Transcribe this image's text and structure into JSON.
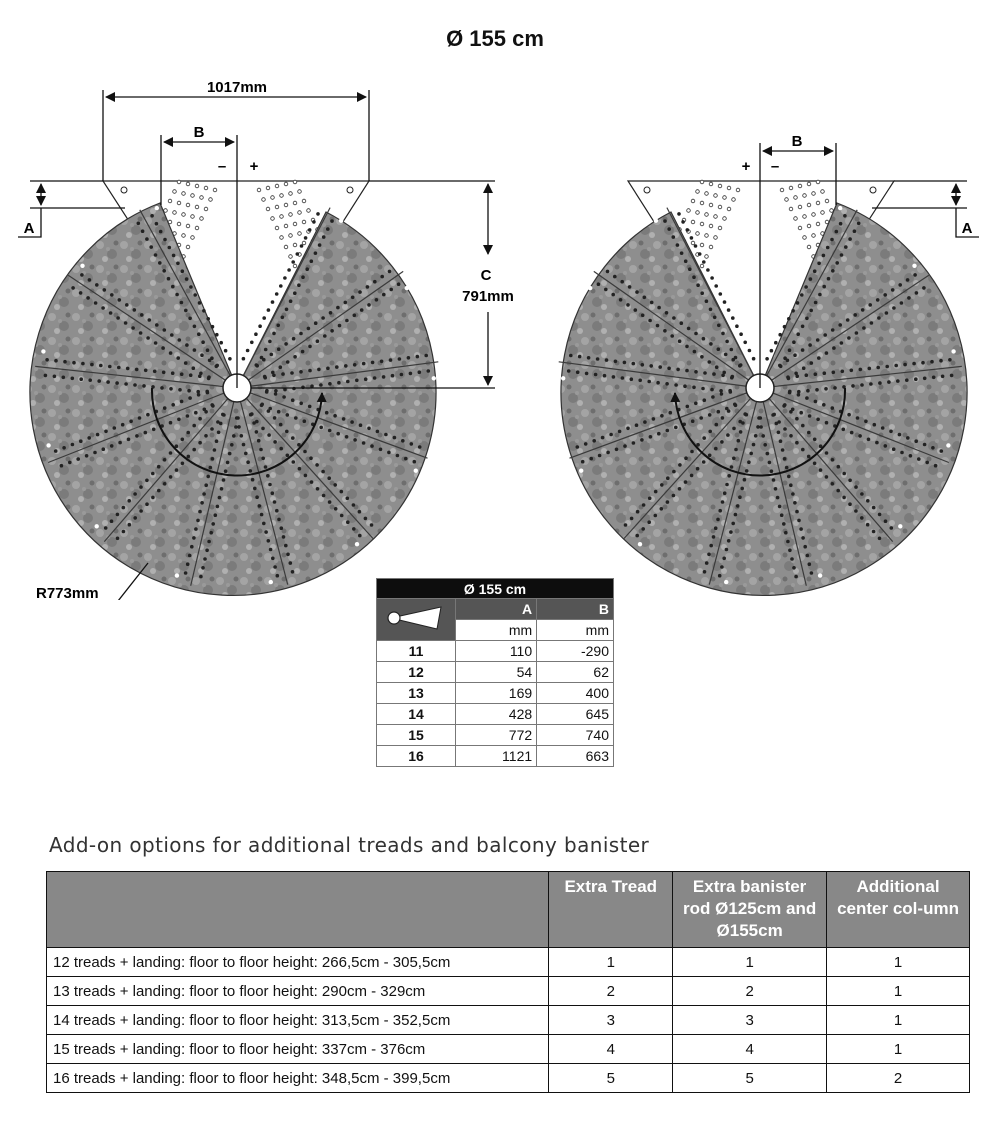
{
  "title": "Ø 155 cm",
  "dimensions": {
    "width": "1017mm",
    "b_label": "B",
    "minus": "–",
    "plus": "+",
    "a_label": "A",
    "c_label": "C",
    "c_value": "791mm",
    "radius": "R773mm"
  },
  "offset_table": {
    "title": "Ø 155 cm",
    "col_a": "A",
    "col_b": "B",
    "unit_a": "mm",
    "unit_b": "mm",
    "rows": [
      {
        "step": "11",
        "a": "110",
        "b": "-290"
      },
      {
        "step": "12",
        "a": "54",
        "b": "62"
      },
      {
        "step": "13",
        "a": "169",
        "b": "400"
      },
      {
        "step": "14",
        "a": "428",
        "b": "645"
      },
      {
        "step": "15",
        "a": "772",
        "b": "740"
      },
      {
        "step": "16",
        "a": "1121",
        "b": "663"
      }
    ]
  },
  "addon": {
    "subtitle": "Add-on options for additional treads and balcony banister",
    "headers": [
      "",
      "Extra Tread",
      "Extra banister rod Ø125cm and Ø155cm",
      "Additional center col-umn"
    ],
    "rows": [
      {
        "desc": "12 treads + landing: floor to floor height: 266,5cm - 305,5cm",
        "tread": "1",
        "rod": "1",
        "column": "1"
      },
      {
        "desc": "13 treads + landing: floor to floor height: 290cm - 329cm",
        "tread": "2",
        "rod": "2",
        "column": "1"
      },
      {
        "desc": "14 treads + landing: floor to floor height: 313,5cm - 352,5cm",
        "tread": "3",
        "rod": "3",
        "column": "1"
      },
      {
        "desc": "15 treads + landing: floor to floor height: 337cm - 376cm",
        "tread": "4",
        "rod": "4",
        "column": "1"
      },
      {
        "desc": "16 treads + landing: floor to floor height: 348,5cm - 399,5cm",
        "tread": "5",
        "rod": "5",
        "column": "2"
      }
    ]
  }
}
